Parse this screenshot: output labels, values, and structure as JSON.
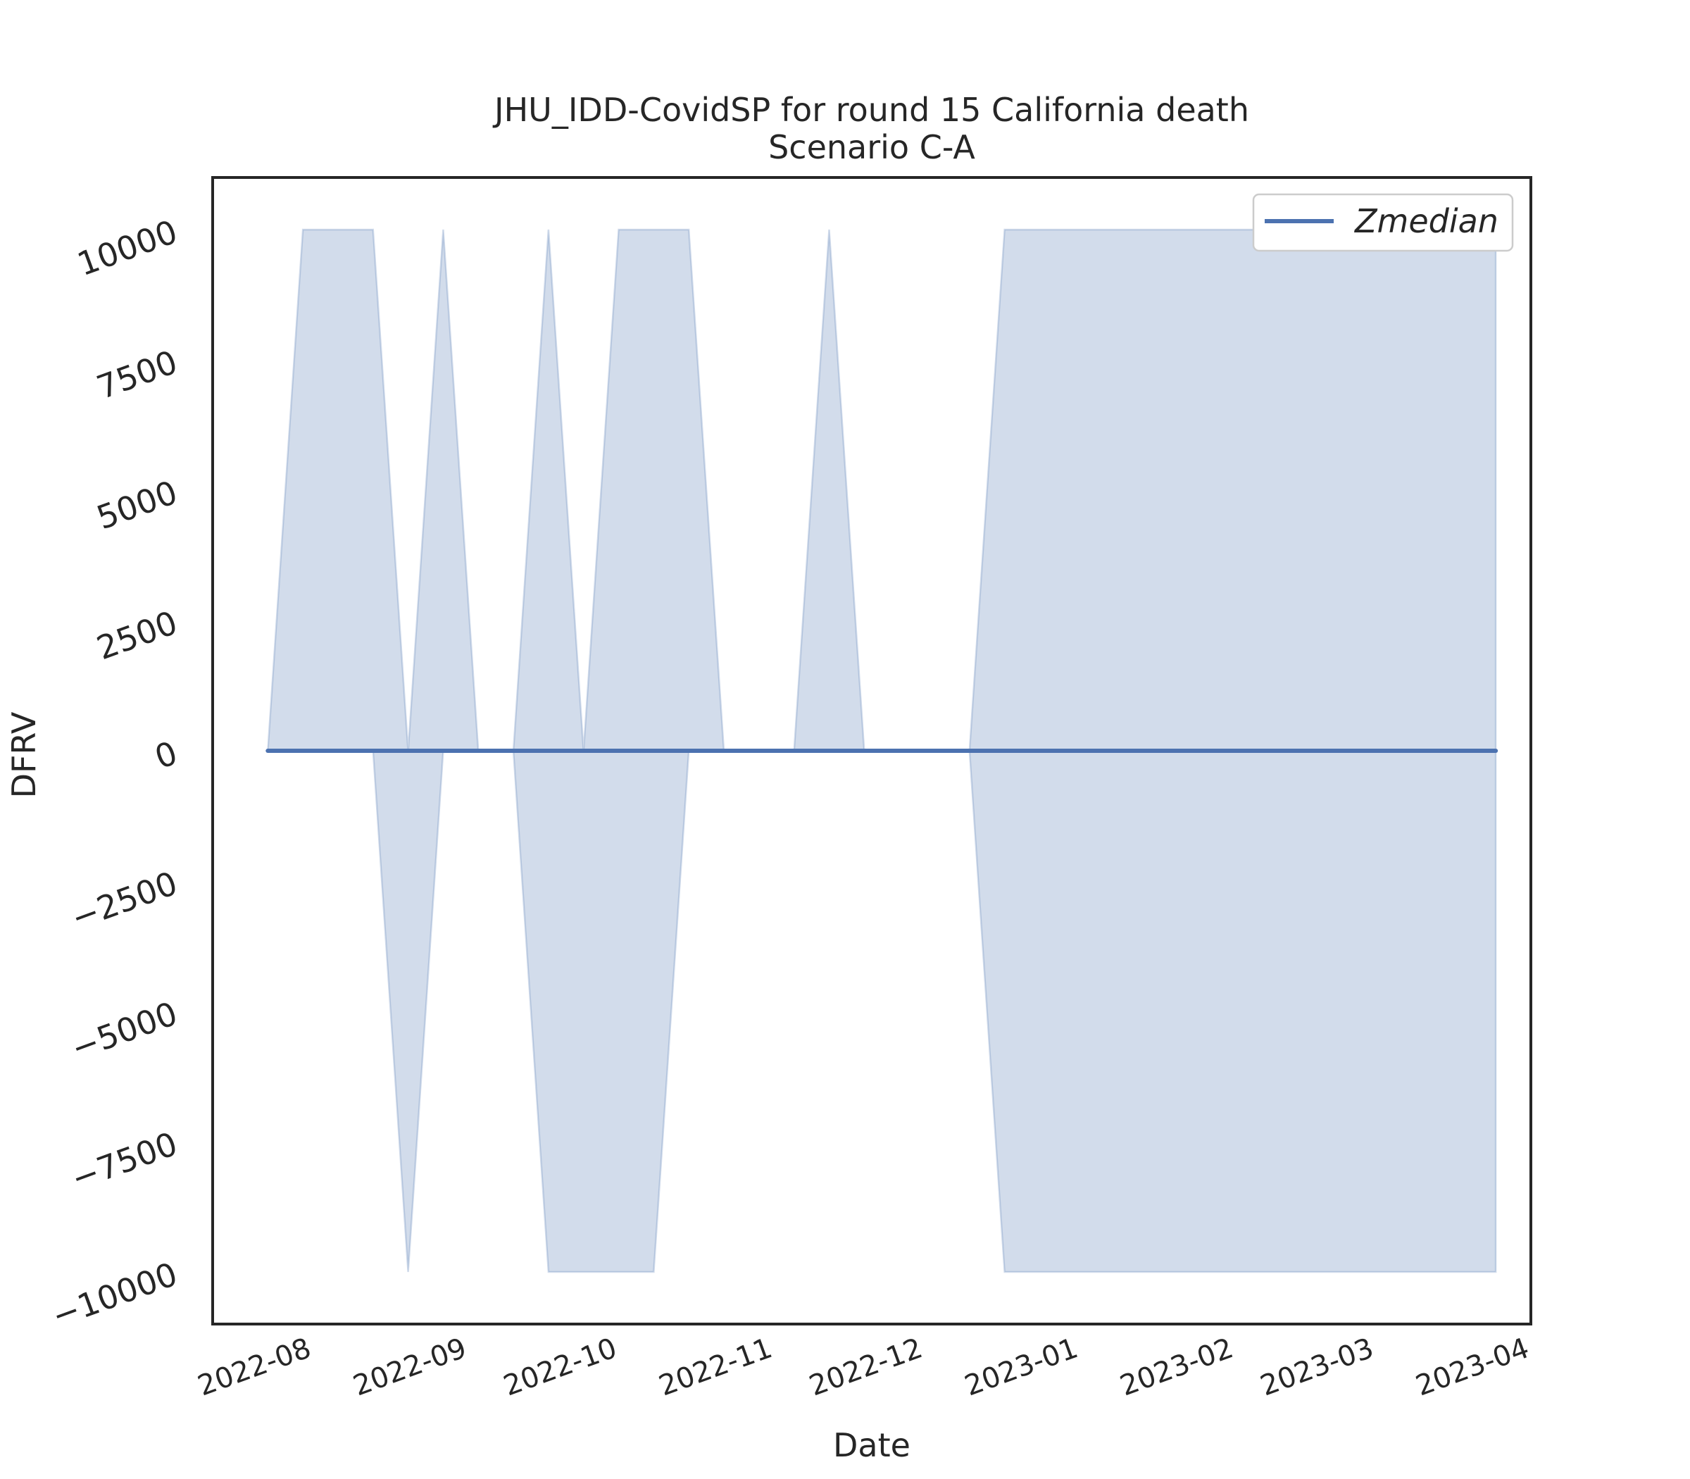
{
  "chart_data": {
    "type": "area",
    "title": "JHU_IDD-CovidSP for round 15 California death",
    "subtitle": "Scenario C-A",
    "xlabel": "Date",
    "ylabel": "DFRV",
    "x_tick_labels": [
      "2022-08",
      "2022-09",
      "2022-10",
      "2022-11",
      "2022-12",
      "2023-01",
      "2023-02",
      "2023-03",
      "2023-04"
    ],
    "y_ticks": [
      -10000,
      -7500,
      -5000,
      -2500,
      0,
      2500,
      5000,
      7500,
      10000
    ],
    "y_tick_labels": [
      "−10000",
      "−7500",
      "−5000",
      "−2500",
      "0",
      "2500",
      "5000",
      "7500",
      "10000"
    ],
    "xlim": [
      "2022-07-12",
      "2023-04-01"
    ],
    "ylim": [
      -11000,
      11000
    ],
    "grid": false,
    "legend_position": "upper right",
    "series": [
      {
        "name": "Zmedian",
        "color": "#4c72b0",
        "x": [
          "2022-07-23",
          "2022-07-30",
          "2022-08-06",
          "2022-08-13",
          "2022-08-20",
          "2022-08-27",
          "2022-09-03",
          "2022-09-10",
          "2022-09-17",
          "2022-09-24",
          "2022-10-01",
          "2022-10-08",
          "2022-10-15",
          "2022-10-22",
          "2022-10-29",
          "2022-11-05",
          "2022-11-12",
          "2022-11-19",
          "2022-11-26",
          "2022-12-03",
          "2022-12-10",
          "2022-12-17",
          "2022-12-24",
          "2022-12-31",
          "2023-01-07",
          "2023-01-14",
          "2023-01-21",
          "2023-01-28",
          "2023-02-04",
          "2023-02-11",
          "2023-02-18",
          "2023-02-25",
          "2023-03-04",
          "2023-03-11",
          "2023-03-18",
          "2023-03-25"
        ],
        "values": [
          0,
          0,
          0,
          0,
          0,
          0,
          0,
          0,
          0,
          0,
          0,
          0,
          0,
          0,
          0,
          0,
          0,
          0,
          0,
          0,
          0,
          0,
          0,
          0,
          0,
          0,
          0,
          0,
          0,
          0,
          0,
          0,
          0,
          0,
          0,
          0
        ],
        "band_upper": [
          0,
          10000,
          10000,
          10000,
          0,
          10000,
          0,
          0,
          10000,
          0,
          10000,
          10000,
          10000,
          0,
          0,
          0,
          10000,
          0,
          0,
          0,
          0,
          10000,
          10000,
          10000,
          10000,
          10000,
          10000,
          10000,
          10000,
          10000,
          10000,
          10000,
          10000,
          10000,
          10000,
          10000
        ],
        "band_lower": [
          0,
          0,
          0,
          0,
          -10000,
          0,
          0,
          0,
          -10000,
          -10000,
          -10000,
          -10000,
          0,
          0,
          0,
          0,
          0,
          0,
          0,
          0,
          0,
          -10000,
          -10000,
          -10000,
          -10000,
          -10000,
          -10000,
          -10000,
          -10000,
          -10000,
          -10000,
          -10000,
          -10000,
          -10000,
          -10000,
          -10000
        ],
        "band_color": "#4c72b0"
      }
    ]
  }
}
